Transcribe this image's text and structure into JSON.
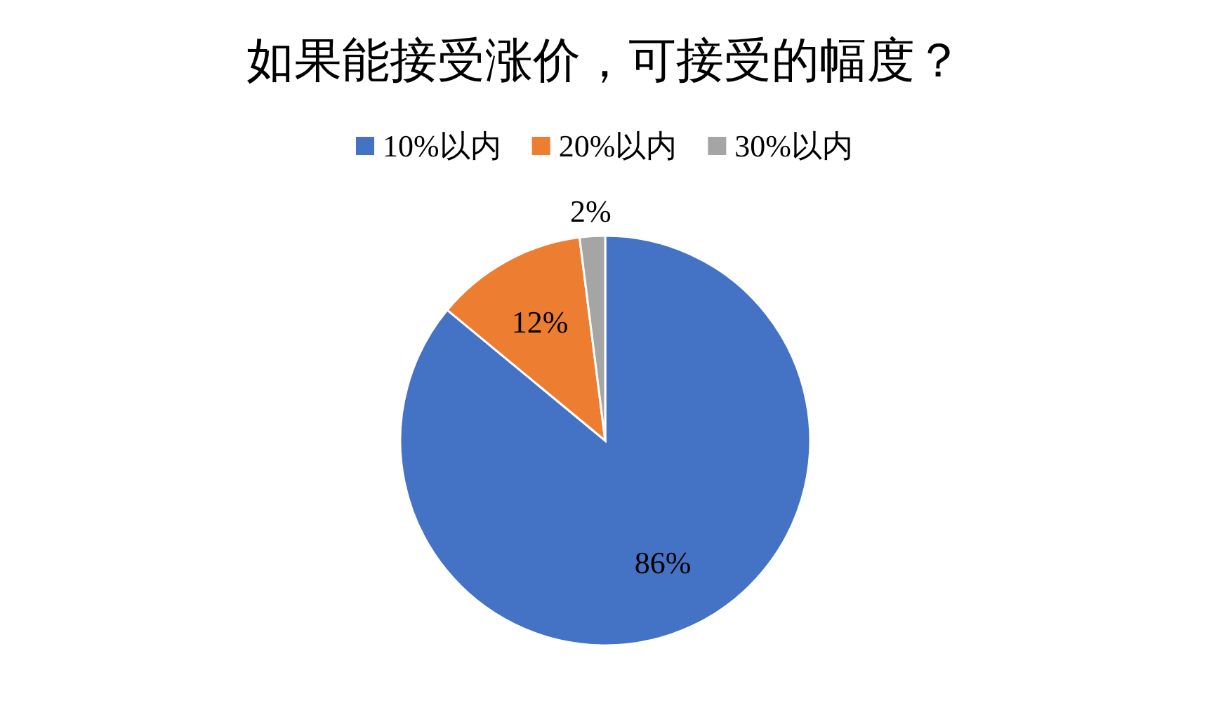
{
  "chart_data": {
    "type": "pie",
    "title": "如果能接受涨价，可接受的幅度？",
    "categories": [
      "10%以内",
      "20%以内",
      "30%以内"
    ],
    "values": [
      86,
      12,
      2
    ],
    "colors": [
      "#4472c4",
      "#ed7d31",
      "#a5a5a5"
    ],
    "value_labels": [
      "86%",
      "12%",
      "2%"
    ],
    "legend": "top"
  }
}
